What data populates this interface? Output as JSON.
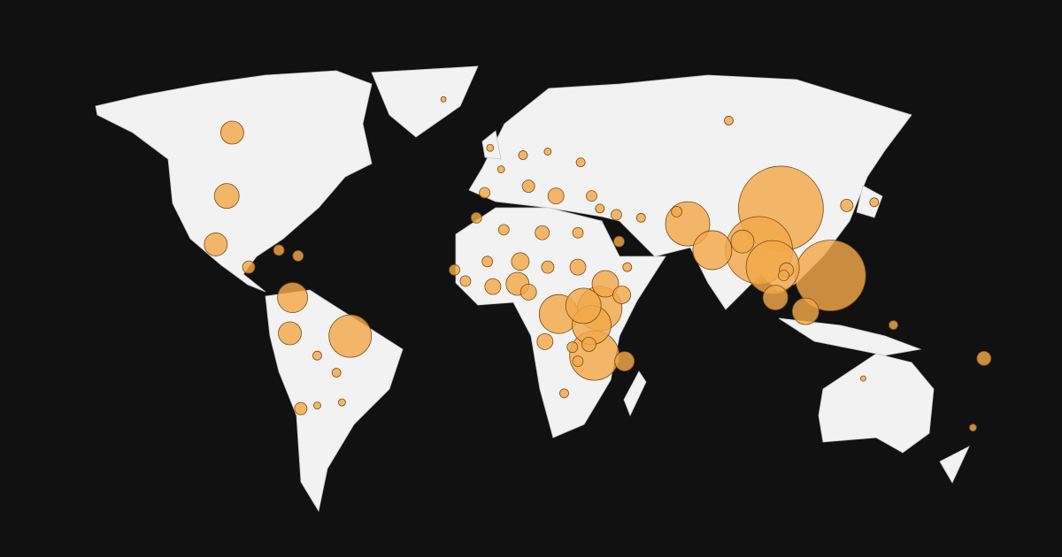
{
  "chart_data": {
    "type": "bubble-map",
    "color": "#f3a84a",
    "bubbles": [
      {
        "lon": 104,
        "lat": 35,
        "value": 2300
      },
      {
        "lon": 122,
        "lat": 12,
        "value": 1600
      },
      {
        "lon": 96,
        "lat": 21,
        "value": 1440
      },
      {
        "lon": 101,
        "lat": 15,
        "value": 900
      },
      {
        "lon": 36,
        "lat": -17,
        "value": 780
      },
      {
        "lon": 70,
        "lat": 30,
        "value": 625
      },
      {
        "lon": 38,
        "lat": 0,
        "value": 625
      },
      {
        "lon": -53,
        "lat": -10,
        "value": 576
      },
      {
        "lon": 79,
        "lat": 21,
        "value": 484
      },
      {
        "lon": 23,
        "lat": -2,
        "value": 484
      },
      {
        "lon": 35,
        "lat": -6,
        "value": 484
      },
      {
        "lon": 32,
        "lat": 1,
        "value": 400
      },
      {
        "lon": -74,
        "lat": 4,
        "value": 289
      },
      {
        "lon": 40,
        "lat": 9,
        "value": 225
      },
      {
        "lon": 113,
        "lat": -1,
        "value": 225
      },
      {
        "lon": -98,
        "lat": 39,
        "value": 196
      },
      {
        "lon": 102,
        "lat": 4,
        "value": 196
      },
      {
        "lon": -96,
        "lat": 57,
        "value": 169
      },
      {
        "lon": -102,
        "lat": 23,
        "value": 169
      },
      {
        "lon": -75,
        "lat": -9,
        "value": 169
      },
      {
        "lon": 8,
        "lat": 9,
        "value": 169
      },
      {
        "lon": 90,
        "lat": 24,
        "value": 169
      },
      {
        "lon": 47,
        "lat": -19,
        "value": 121
      },
      {
        "lon": 9,
        "lat": 17,
        "value": 100
      },
      {
        "lon": 46,
        "lat": 5,
        "value": 100
      },
      {
        "lon": 30,
        "lat": 15,
        "value": 81
      },
      {
        "lon": -1,
        "lat": 8,
        "value": 81
      },
      {
        "lon": 12,
        "lat": 6,
        "value": 81
      },
      {
        "lon": 18,
        "lat": -12,
        "value": 81
      },
      {
        "lon": 22,
        "lat": 39,
        "value": 81
      },
      {
        "lon": 17,
        "lat": 27,
        "value": 64
      },
      {
        "lon": 34,
        "lat": -13,
        "value": 64
      },
      {
        "lon": 106,
        "lat": 14,
        "value": 64
      },
      {
        "lon": 178,
        "lat": -18,
        "value": 64
      },
      {
        "lon": -90,
        "lat": 15,
        "value": 49
      },
      {
        "lon": -71,
        "lat": -35,
        "value": 49
      },
      {
        "lon": 19,
        "lat": 15,
        "value": 49
      },
      {
        "lon": 12,
        "lat": 42,
        "value": 49
      },
      {
        "lon": 128,
        "lat": 36,
        "value": 49
      },
      {
        "lon": -79,
        "lat": 21,
        "value": 36
      },
      {
        "lon": -72,
        "lat": 19,
        "value": 36
      },
      {
        "lon": -7,
        "lat": 32,
        "value": 36
      },
      {
        "lon": 3,
        "lat": 28,
        "value": 36
      },
      {
        "lon": 30,
        "lat": 27,
        "value": 36
      },
      {
        "lon": -3,
        "lat": 17,
        "value": 36
      },
      {
        "lon": -15,
        "lat": 14,
        "value": 36
      },
      {
        "lon": -11,
        "lat": 10,
        "value": 36
      },
      {
        "lon": 28,
        "lat": -14,
        "value": 36
      },
      {
        "lon": 30,
        "lat": -19,
        "value": 36
      },
      {
        "lon": 35,
        "lat": 39,
        "value": 36
      },
      {
        "lon": 44,
        "lat": 33,
        "value": 36
      },
      {
        "lon": 45,
        "lat": 24,
        "value": 36
      },
      {
        "lon": 66,
        "lat": 34,
        "value": 36
      },
      {
        "lon": 105,
        "lat": 12,
        "value": 36
      },
      {
        "lon": -4,
        "lat": 40,
        "value": 36
      },
      {
        "lon": 25,
        "lat": -30,
        "value": 25
      },
      {
        "lon": -65,
        "lat": -17,
        "value": 25
      },
      {
        "lon": -58,
        "lat": -23,
        "value": 25
      },
      {
        "lon": 38,
        "lat": 35,
        "value": 25
      },
      {
        "lon": 53,
        "lat": 32,
        "value": 25
      },
      {
        "lon": 48,
        "lat": 15,
        "value": 25
      },
      {
        "lon": 138,
        "lat": 37,
        "value": 25
      },
      {
        "lon": 85,
        "lat": 60,
        "value": 25
      },
      {
        "lon": 31,
        "lat": 49,
        "value": 25
      },
      {
        "lon": 10,
        "lat": 51,
        "value": 25
      },
      {
        "lon": 145,
        "lat": -6,
        "value": 25
      },
      {
        "lon": -65,
        "lat": -34,
        "value": 16
      },
      {
        "lon": -56,
        "lat": -33,
        "value": 16
      },
      {
        "lon": 19,
        "lat": 52,
        "value": 16
      },
      {
        "lon": 2,
        "lat": 47,
        "value": 16
      },
      {
        "lon": -2,
        "lat": 53,
        "value": 16
      },
      {
        "lon": 174,
        "lat": -41,
        "value": 16
      },
      {
        "lon": -19,
        "lat": 65,
        "value": 9
      },
      {
        "lon": 134,
        "lat": -25,
        "value": 9
      }
    ]
  }
}
